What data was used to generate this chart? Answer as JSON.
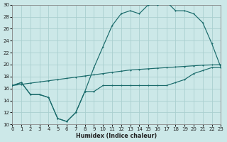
{
  "xlabel": "Humidex (Indice chaleur)",
  "bg_color": "#cce8e8",
  "grid_color": "#aacfcf",
  "line_color": "#1a6b6b",
  "xlim": [
    0,
    23
  ],
  "ylim": [
    10,
    30
  ],
  "xticks": [
    0,
    1,
    2,
    3,
    4,
    5,
    6,
    7,
    8,
    9,
    10,
    11,
    12,
    13,
    14,
    15,
    16,
    17,
    18,
    19,
    20,
    21,
    22,
    23
  ],
  "yticks": [
    10,
    12,
    14,
    16,
    18,
    20,
    22,
    24,
    26,
    28,
    30
  ],
  "line_straight_x": [
    0,
    1,
    2,
    3,
    4,
    5,
    6,
    7,
    8,
    9,
    10,
    11,
    12,
    13,
    14,
    15,
    16,
    17,
    18,
    19,
    20,
    21,
    22,
    23
  ],
  "line_straight_y": [
    16.5,
    16.7,
    16.9,
    17.1,
    17.3,
    17.5,
    17.7,
    17.9,
    18.1,
    18.3,
    18.5,
    18.7,
    18.9,
    19.1,
    19.2,
    19.3,
    19.4,
    19.5,
    19.6,
    19.7,
    19.8,
    19.9,
    19.95,
    20.0
  ],
  "line_dip_x": [
    0,
    1,
    2,
    3,
    4,
    5,
    6,
    7,
    8,
    9,
    10,
    11,
    12,
    13,
    14,
    15,
    16,
    17,
    18,
    19,
    20,
    21,
    22,
    23
  ],
  "line_dip_y": [
    16.5,
    17.0,
    15.0,
    15.0,
    14.5,
    11.0,
    10.5,
    12.0,
    15.5,
    15.5,
    16.5,
    16.5,
    16.5,
    16.5,
    16.5,
    16.5,
    16.5,
    16.5,
    17.0,
    17.5,
    18.5,
    19.0,
    19.5,
    19.5
  ],
  "line_peak_x": [
    0,
    1,
    2,
    3,
    4,
    5,
    6,
    7,
    8,
    9,
    10,
    11,
    12,
    13,
    14,
    15,
    16,
    17,
    18,
    19,
    20,
    21,
    22,
    23
  ],
  "line_peak_y": [
    16.5,
    17.0,
    15.0,
    15.0,
    14.5,
    11.0,
    10.5,
    12.0,
    15.5,
    19.5,
    23.0,
    26.5,
    28.5,
    29.0,
    28.5,
    30.0,
    30.0,
    30.5,
    29.0,
    29.0,
    28.5,
    27.0,
    23.5,
    19.5
  ]
}
